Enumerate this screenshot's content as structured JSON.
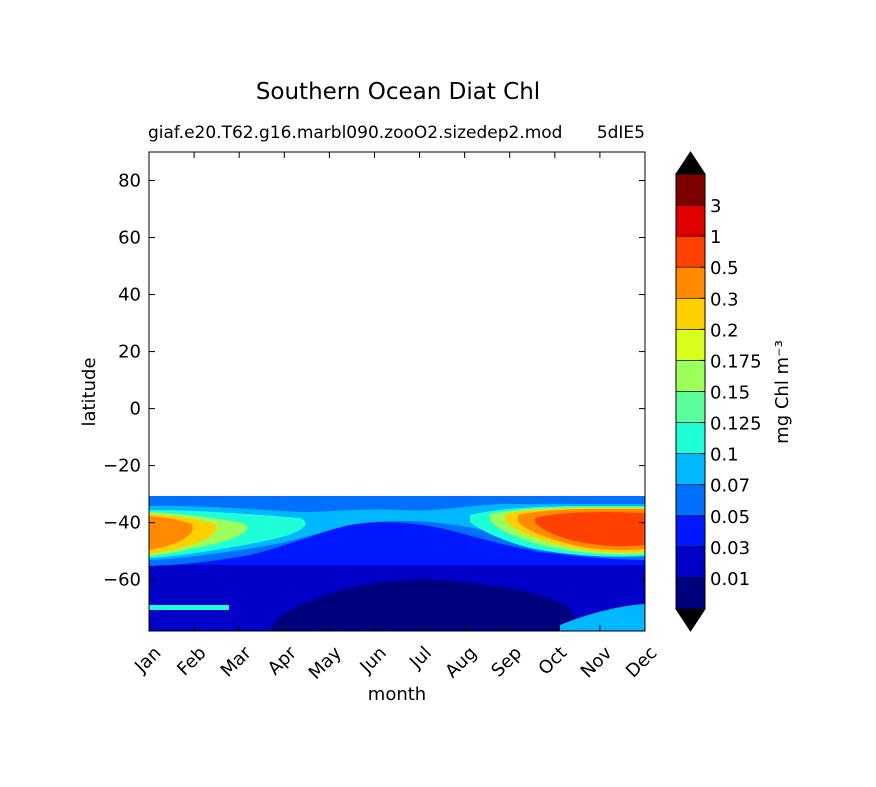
{
  "chart_data": {
    "type": "heatmap",
    "title": "Southern Ocean Diat Chl",
    "subtitle_left": "giaf.e20.T62.g16.marbl090.zooO2.sizedep2.mod",
    "subtitle_right": "5dIE5",
    "xlabel": "month",
    "ylabel": "latitude",
    "x_categories": [
      "Jan",
      "Feb",
      "Mar",
      "Apr",
      "May",
      "Jun",
      "Jul",
      "Aug",
      "Sep",
      "Oct",
      "Nov",
      "Dec"
    ],
    "ylim": [
      -78,
      90
    ],
    "yticks": [
      80,
      60,
      40,
      20,
      0,
      -20,
      -40,
      -60
    ],
    "ytick_labels": [
      "80",
      "60",
      "40",
      "20",
      "0",
      "−20",
      "−40",
      "−60"
    ],
    "data_lat_range": [
      -78,
      -31
    ],
    "colorbar": {
      "label": "mg Chl m⁻³",
      "levels": [
        0.01,
        0.03,
        0.05,
        0.07,
        0.1,
        0.125,
        0.15,
        0.175,
        0.2,
        0.3,
        0.5,
        1,
        3
      ],
      "level_labels": [
        "0.01",
        "0.03",
        "0.05",
        "0.07",
        "0.1",
        "0.125",
        "0.15",
        "0.175",
        "0.2",
        "0.3",
        "0.5",
        "1",
        "3"
      ],
      "colors": [
        "#00007f",
        "#0000c8",
        "#0018ff",
        "#0070ff",
        "#00b8ff",
        "#1effd8",
        "#5aff9c",
        "#9cff5a",
        "#d8ff1e",
        "#ffd000",
        "#ff8a00",
        "#ff4000",
        "#e00000",
        "#7f0000"
      ],
      "extend": "both"
    }
  }
}
